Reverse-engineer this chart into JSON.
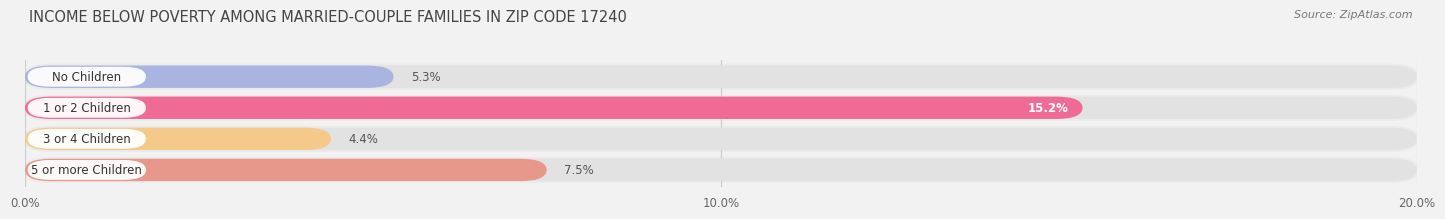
{
  "title": "INCOME BELOW POVERTY AMONG MARRIED-COUPLE FAMILIES IN ZIP CODE 17240",
  "source": "Source: ZipAtlas.com",
  "categories": [
    "No Children",
    "1 or 2 Children",
    "3 or 4 Children",
    "5 or more Children"
  ],
  "values": [
    5.3,
    15.2,
    4.4,
    7.5
  ],
  "bar_colors": [
    "#aab4e0",
    "#ef6b96",
    "#f5c98a",
    "#e8988a"
  ],
  "value_labels": [
    "5.3%",
    "15.2%",
    "4.4%",
    "7.5%"
  ],
  "xlim": [
    0,
    20
  ],
  "xticks": [
    0.0,
    10.0,
    20.0
  ],
  "xticklabels": [
    "0.0%",
    "10.0%",
    "20.0%"
  ],
  "bg_color": "#f0f0f0",
  "bar_bg_color": "#e2e2e2",
  "row_bg_color": "#f5f5f5",
  "title_fontsize": 10.5,
  "label_fontsize": 8.5,
  "value_fontsize": 8.5,
  "source_fontsize": 8
}
